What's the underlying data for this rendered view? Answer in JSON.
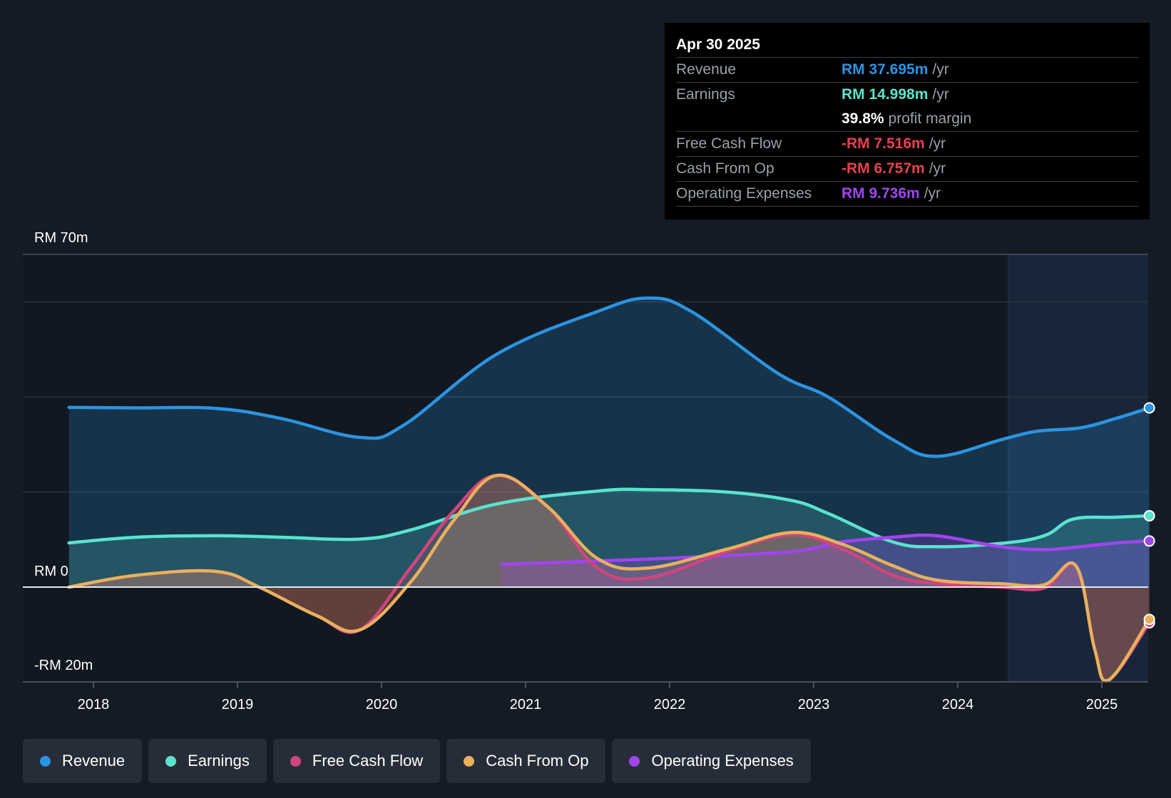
{
  "tooltip": {
    "date": "Apr 30 2025",
    "rows": [
      {
        "label": "Revenue",
        "value": "RM 37.695m",
        "unit": "/yr",
        "color": "#2b94e1"
      },
      {
        "label": "Earnings",
        "value": "RM 14.998m",
        "unit": "/yr",
        "color": "#5ae3cf"
      },
      {
        "label": "",
        "value": "39.8%",
        "unit": "profit margin",
        "color": "#ffffff"
      },
      {
        "label": "Free Cash Flow",
        "value": "-RM 7.516m",
        "unit": "/yr",
        "color": "#e5424f"
      },
      {
        "label": "Cash From Op",
        "value": "-RM 6.757m",
        "unit": "/yr",
        "color": "#e5424f"
      },
      {
        "label": "Operating Expenses",
        "value": "RM 9.736m",
        "unit": "/yr",
        "color": "#a045ee"
      }
    ]
  },
  "legend": [
    {
      "label": "Revenue",
      "color": "#2b94e1"
    },
    {
      "label": "Earnings",
      "color": "#5ae3cf"
    },
    {
      "label": "Free Cash Flow",
      "color": "#d1457d"
    },
    {
      "label": "Cash From Op",
      "color": "#e9b05d"
    },
    {
      "label": "Operating Expenses",
      "color": "#a045ee"
    }
  ],
  "chart_data": {
    "type": "line",
    "title": "",
    "xlabel": "",
    "ylabel": "",
    "y_axis_labels": {
      "top": "RM 70m",
      "zero": "RM 0",
      "bottom": "-RM 20m"
    },
    "ylim": [
      -20,
      70
    ],
    "xlim": [
      2017.85,
      2025.35
    ],
    "x_ticks": [
      2018,
      2019,
      2020,
      2021,
      2022,
      2023,
      2024,
      2025
    ],
    "x_tick_labels": [
      "2018",
      "2019",
      "2020",
      "2021",
      "2022",
      "2023",
      "2024",
      "2025"
    ],
    "forecast_start": 2024.35,
    "series": [
      {
        "name": "Revenue",
        "color": "#2b94e1",
        "points": [
          [
            2017.83,
            37.8
          ],
          [
            2018.3,
            37.7
          ],
          [
            2018.85,
            37.6
          ],
          [
            2019.3,
            35.5
          ],
          [
            2019.85,
            31.5
          ],
          [
            2020.15,
            34
          ],
          [
            2020.8,
            49
          ],
          [
            2021.5,
            58
          ],
          [
            2021.85,
            60.8
          ],
          [
            2022.15,
            58
          ],
          [
            2022.75,
            45
          ],
          [
            2023.1,
            40
          ],
          [
            2023.55,
            31
          ],
          [
            2023.85,
            27.5
          ],
          [
            2024.3,
            31
          ],
          [
            2024.55,
            32.8
          ],
          [
            2024.85,
            33.5
          ],
          [
            2025.1,
            35.5
          ],
          [
            2025.33,
            37.7
          ]
        ]
      },
      {
        "name": "Earnings",
        "color": "#5ae3cf",
        "points": [
          [
            2017.83,
            9.3
          ],
          [
            2018.3,
            10.5
          ],
          [
            2018.85,
            10.8
          ],
          [
            2019.3,
            10.5
          ],
          [
            2019.85,
            10.1
          ],
          [
            2020.2,
            12
          ],
          [
            2020.8,
            17.5
          ],
          [
            2021.5,
            20.2
          ],
          [
            2021.85,
            20.5
          ],
          [
            2022.4,
            20
          ],
          [
            2022.85,
            18.2
          ],
          [
            2023.1,
            15.5
          ],
          [
            2023.55,
            9.5
          ],
          [
            2023.85,
            8.5
          ],
          [
            2024.3,
            9.2
          ],
          [
            2024.6,
            10.8
          ],
          [
            2024.8,
            14.3
          ],
          [
            2025.1,
            14.7
          ],
          [
            2025.33,
            15
          ]
        ]
      },
      {
        "name": "Free Cash Flow",
        "color": "#d1457d",
        "points": [
          [
            2017.83,
            0
          ],
          [
            2018.3,
            2.5
          ],
          [
            2018.85,
            3.3
          ],
          [
            2019.15,
            0
          ],
          [
            2019.55,
            -6
          ],
          [
            2019.85,
            -9
          ],
          [
            2020.2,
            4
          ],
          [
            2020.5,
            16
          ],
          [
            2020.8,
            23.5
          ],
          [
            2021.15,
            17
          ],
          [
            2021.5,
            4
          ],
          [
            2021.85,
            2
          ],
          [
            2022.4,
            7.5
          ],
          [
            2022.85,
            11
          ],
          [
            2023.2,
            8
          ],
          [
            2023.55,
            2.5
          ],
          [
            2023.85,
            0.8
          ],
          [
            2024.3,
            0
          ],
          [
            2024.6,
            -0.2
          ],
          [
            2024.82,
            4.5
          ],
          [
            2024.95,
            -13
          ],
          [
            2025.05,
            -19.5
          ],
          [
            2025.33,
            -7.5
          ]
        ]
      },
      {
        "name": "Cash From Op",
        "color": "#e9b05d",
        "points": [
          [
            2017.83,
            0
          ],
          [
            2018.3,
            2.5
          ],
          [
            2018.85,
            3.3
          ],
          [
            2019.15,
            0
          ],
          [
            2019.55,
            -6
          ],
          [
            2019.85,
            -9
          ],
          [
            2020.2,
            1
          ],
          [
            2020.5,
            14
          ],
          [
            2020.8,
            23.5
          ],
          [
            2021.15,
            17
          ],
          [
            2021.5,
            6
          ],
          [
            2021.85,
            4
          ],
          [
            2022.4,
            8
          ],
          [
            2022.85,
            11.5
          ],
          [
            2023.2,
            9
          ],
          [
            2023.55,
            4.5
          ],
          [
            2023.85,
            1.5
          ],
          [
            2024.3,
            0.7
          ],
          [
            2024.6,
            0.5
          ],
          [
            2024.82,
            4.5
          ],
          [
            2024.95,
            -13
          ],
          [
            2025.05,
            -19.5
          ],
          [
            2025.33,
            -6.8
          ]
        ]
      },
      {
        "name": "Operating Expenses",
        "color": "#a045ee",
        "points": [
          [
            2020.83,
            4.8
          ],
          [
            2021.5,
            5.5
          ],
          [
            2022.15,
            6.3
          ],
          [
            2022.85,
            7.5
          ],
          [
            2023.2,
            9.5
          ],
          [
            2023.55,
            10.5
          ],
          [
            2023.85,
            10.8
          ],
          [
            2024.3,
            8.5
          ],
          [
            2024.6,
            7.9
          ],
          [
            2024.85,
            8.5
          ],
          [
            2025.1,
            9.3
          ],
          [
            2025.33,
            9.7
          ]
        ]
      }
    ]
  }
}
